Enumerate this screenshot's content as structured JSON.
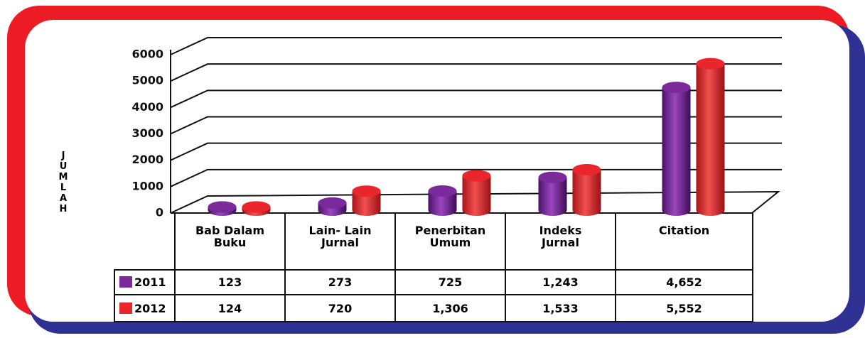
{
  "chart_data": {
    "type": "bar3d",
    "y_label": "JUMLAH",
    "categories": [
      "Bab Dalam Buku",
      "Lain- Lain Jurnal",
      "Penerbitan Umum",
      "Indeks Jurnal",
      "Citation"
    ],
    "series": [
      {
        "name": "2011",
        "color": "#7b2a9c",
        "values": [
          123,
          273,
          725,
          1243,
          4652
        ],
        "value_labels": [
          "123",
          "273",
          "725",
          "1,243",
          "4,652"
        ]
      },
      {
        "name": "2012",
        "color": "#e8262b",
        "values": [
          124,
          720,
          1306,
          1533,
          5552
        ],
        "value_labels": [
          "124",
          "720",
          "1,306",
          "1,533",
          "5,552"
        ]
      }
    ],
    "ylim": [
      0,
      6000
    ],
    "yticks": [
      0,
      1000,
      2000,
      3000,
      4000,
      5000,
      6000
    ],
    "grid": true
  }
}
